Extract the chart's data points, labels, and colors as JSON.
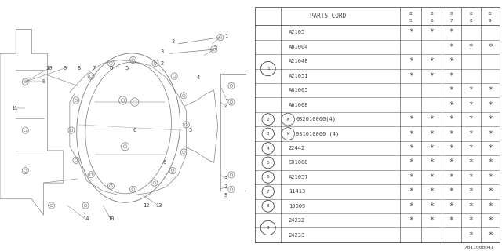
{
  "title": "A011000041",
  "table_header": "PARTS CORD",
  "years": [
    "5",
    "6",
    "7",
    "8",
    "9"
  ],
  "year_prefix": "8",
  "rows": [
    {
      "ref": "1",
      "show_ref_at": 2,
      "parts": [
        {
          "code": "A2105",
          "marks": [
            1,
            1,
            1,
            0,
            0
          ]
        },
        {
          "code": "A61004",
          "marks": [
            0,
            0,
            1,
            1,
            1
          ]
        },
        {
          "code": "A21048",
          "marks": [
            1,
            1,
            1,
            0,
            0
          ]
        },
        {
          "code": "A21051",
          "marks": [
            1,
            1,
            1,
            0,
            0
          ]
        },
        {
          "code": "A61005",
          "marks": [
            0,
            0,
            1,
            1,
            1
          ]
        },
        {
          "code": "A61008",
          "marks": [
            0,
            0,
            1,
            1,
            1
          ]
        }
      ]
    },
    {
      "ref": "2",
      "show_ref_at": 0,
      "parts": [
        {
          "code": "W032010000(4)",
          "marks": [
            1,
            1,
            1,
            1,
            1
          ]
        }
      ]
    },
    {
      "ref": "3",
      "show_ref_at": 0,
      "parts": [
        {
          "code": "W031010000 (4)",
          "marks": [
            1,
            1,
            1,
            1,
            1
          ]
        }
      ]
    },
    {
      "ref": "4",
      "show_ref_at": 0,
      "parts": [
        {
          "code": "22442",
          "marks": [
            1,
            1,
            1,
            1,
            1
          ]
        }
      ]
    },
    {
      "ref": "5",
      "show_ref_at": 0,
      "parts": [
        {
          "code": "C01008",
          "marks": [
            1,
            1,
            1,
            1,
            1
          ]
        }
      ]
    },
    {
      "ref": "6",
      "show_ref_at": 0,
      "parts": [
        {
          "code": "A21057",
          "marks": [
            1,
            1,
            1,
            1,
            1
          ]
        }
      ]
    },
    {
      "ref": "7",
      "show_ref_at": 0,
      "parts": [
        {
          "code": "11413",
          "marks": [
            1,
            1,
            1,
            1,
            1
          ]
        }
      ]
    },
    {
      "ref": "8",
      "show_ref_at": 0,
      "parts": [
        {
          "code": "10009",
          "marks": [
            1,
            1,
            1,
            1,
            1
          ]
        }
      ]
    },
    {
      "ref": "9",
      "show_ref_at": 0,
      "parts": [
        {
          "code": "24232",
          "marks": [
            1,
            1,
            1,
            1,
            1
          ]
        },
        {
          "code": "24233",
          "marks": [
            0,
            0,
            0,
            1,
            1
          ]
        }
      ]
    }
  ],
  "bg_color": "#ffffff",
  "line_color": "#787878",
  "text_color": "#404040",
  "table_line_color": "#555555"
}
